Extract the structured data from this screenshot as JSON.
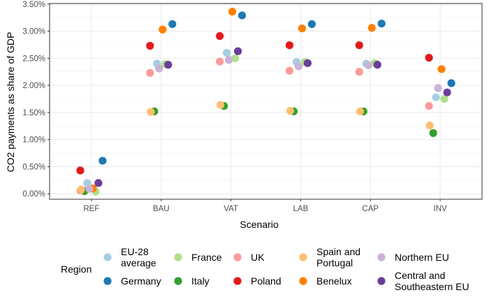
{
  "chart_data": {
    "type": "scatter",
    "title": "",
    "xlabel": "Scenario",
    "ylabel": "CO2 payments as share of GDP",
    "categories": [
      "REF",
      "BAU",
      "VAT",
      "LAB",
      "CAP",
      "INV"
    ],
    "y_ticks": [
      "0.00%",
      "0.50%",
      "1.00%",
      "1.50%",
      "2.00%",
      "2.50%",
      "3.00%",
      "3.50%"
    ],
    "ylim": [
      -0.001,
      0.0351
    ],
    "grid": true,
    "legend_title": "Region",
    "legend_position": "bottom",
    "series": [
      {
        "name": "EU-28 average",
        "label_lines": [
          "EU-28",
          "average"
        ],
        "color": "#a6cee3",
        "points": [
          [
            1,
            0.002
          ],
          [
            2,
            0.024
          ],
          [
            3,
            0.026
          ],
          [
            4,
            0.0243
          ],
          [
            5,
            0.024
          ],
          [
            6,
            0.0178
          ]
        ]
      },
      {
        "name": "Germany",
        "label_lines": [
          "Germany"
        ],
        "color": "#1f78b4",
        "points": [
          [
            1,
            0.0061
          ],
          [
            2,
            0.0313
          ],
          [
            3,
            0.0329
          ],
          [
            4,
            0.0313
          ],
          [
            5,
            0.0314
          ],
          [
            6,
            0.0204
          ]
        ]
      },
      {
        "name": "France",
        "label_lines": [
          "France"
        ],
        "color": "#b2df8a",
        "points": [
          [
            1,
            0.0004
          ],
          [
            2,
            0.0239
          ],
          [
            3,
            0.025
          ],
          [
            4,
            0.0243
          ],
          [
            5,
            0.0241
          ],
          [
            6,
            0.0175
          ]
        ]
      },
      {
        "name": "Italy",
        "label_lines": [
          "Italy"
        ],
        "color": "#33a02c",
        "points": [
          [
            1,
            0.0005
          ],
          [
            2,
            0.0152
          ],
          [
            3,
            0.0162
          ],
          [
            4,
            0.0152
          ],
          [
            5,
            0.0152
          ],
          [
            6,
            0.0112
          ]
        ]
      },
      {
        "name": "UK",
        "label_lines": [
          "UK"
        ],
        "color": "#fb9a99",
        "points": [
          [
            1,
            0.0006
          ],
          [
            2,
            0.0223
          ],
          [
            3,
            0.0244
          ],
          [
            4,
            0.0227
          ],
          [
            5,
            0.0225
          ],
          [
            6,
            0.0162
          ]
        ]
      },
      {
        "name": "Poland",
        "label_lines": [
          "Poland"
        ],
        "color": "#e31a1c",
        "points": [
          [
            1,
            0.0043
          ],
          [
            2,
            0.0273
          ],
          [
            3,
            0.0291
          ],
          [
            4,
            0.0274
          ],
          [
            5,
            0.0274
          ],
          [
            6,
            0.0251
          ]
        ]
      },
      {
        "name": "Spain and Portugal",
        "label_lines": [
          "Spain and",
          "Portugal"
        ],
        "color": "#fdbf6f",
        "points": [
          [
            1,
            0.0008
          ],
          [
            2,
            0.0151
          ],
          [
            3,
            0.0164
          ],
          [
            4,
            0.0153
          ],
          [
            5,
            0.0152
          ],
          [
            6,
            0.0126
          ]
        ]
      },
      {
        "name": "Benelux",
        "label_lines": [
          "Benelux"
        ],
        "color": "#ff7f00",
        "points": [
          [
            1,
            0.001
          ],
          [
            2,
            0.0303
          ],
          [
            3,
            0.0336
          ],
          [
            4,
            0.0305
          ],
          [
            5,
            0.0306
          ],
          [
            6,
            0.023
          ]
        ]
      },
      {
        "name": "Northern EU",
        "label_lines": [
          "Northern EU"
        ],
        "color": "#cab2d6",
        "points": [
          [
            1,
            0.0009
          ],
          [
            2,
            0.0231
          ],
          [
            3,
            0.0247
          ],
          [
            4,
            0.0235
          ],
          [
            5,
            0.0237
          ],
          [
            6,
            0.0195
          ]
        ]
      },
      {
        "name": "Central and Southeastern EU",
        "label_lines": [
          "Central and",
          "Southeastern EU"
        ],
        "color": "#6a3d9a",
        "points": [
          [
            1,
            0.002
          ],
          [
            2,
            0.0238
          ],
          [
            3,
            0.0263
          ],
          [
            4,
            0.0241
          ],
          [
            5,
            0.0238
          ],
          [
            6,
            0.0187
          ]
        ]
      }
    ]
  }
}
